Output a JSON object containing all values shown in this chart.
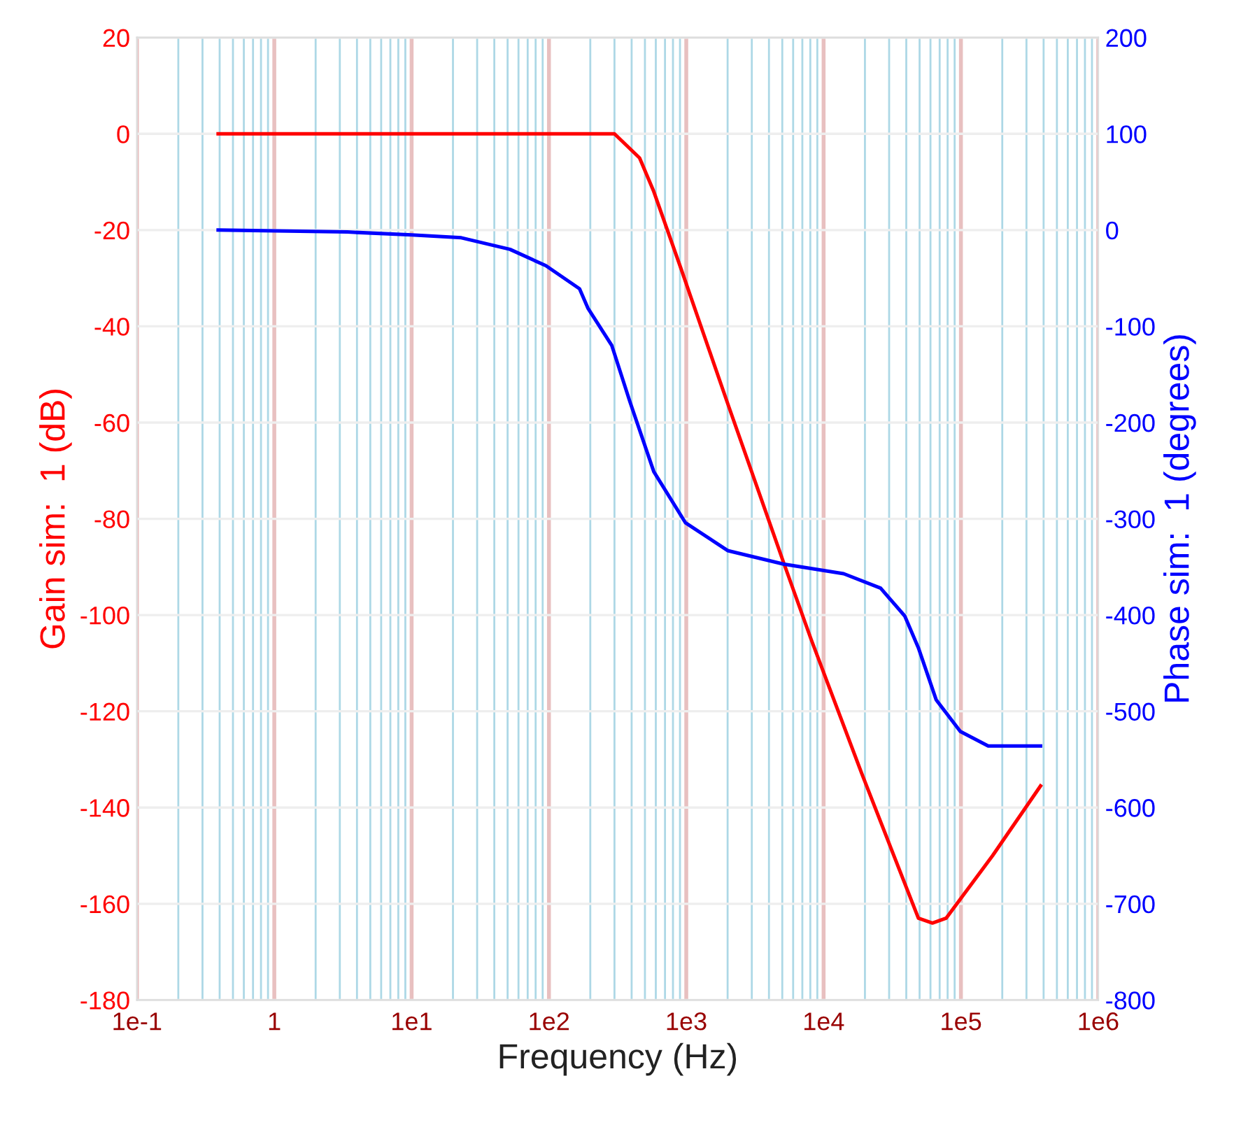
{
  "chart_data": {
    "type": "line",
    "xlabel": "Frequency (Hz)",
    "ylabel": "Gain sim:  1 (dB)",
    "y2label": "Phase sim:  1 (degrees)",
    "log": "x",
    "grid": true,
    "marker": "none",
    "line_style": "solid",
    "xlim": [
      0.1,
      1000000
    ],
    "xticks": [
      {
        "value": 0.1,
        "label": "1e-1"
      },
      {
        "value": 0.2,
        "label": null
      },
      {
        "value": 0.3,
        "label": null
      },
      {
        "value": 0.4,
        "label": null
      },
      {
        "value": 0.5,
        "label": null
      },
      {
        "value": 0.6,
        "label": null
      },
      {
        "value": 0.7,
        "label": null
      },
      {
        "value": 0.8,
        "label": null
      },
      {
        "value": 0.9,
        "label": null
      },
      1,
      {
        "value": 2,
        "label": null
      },
      {
        "value": 3,
        "label": null
      },
      {
        "value": 4,
        "label": null
      },
      {
        "value": 5,
        "label": null
      },
      {
        "value": 6,
        "label": null
      },
      {
        "value": 7,
        "label": null
      },
      {
        "value": 8,
        "label": null
      },
      {
        "value": 9,
        "label": null
      },
      {
        "value": 10,
        "label": "1e1"
      },
      {
        "value": 20,
        "label": null
      },
      {
        "value": 30,
        "label": null
      },
      {
        "value": 40,
        "label": null
      },
      {
        "value": 50,
        "label": null
      },
      {
        "value": 60,
        "label": null
      },
      {
        "value": 70,
        "label": null
      },
      {
        "value": 80,
        "label": null
      },
      {
        "value": 90,
        "label": null
      },
      {
        "value": 100,
        "label": "1e2"
      },
      {
        "value": 200,
        "label": null
      },
      {
        "value": 300,
        "label": null
      },
      {
        "value": 400,
        "label": null
      },
      {
        "value": 500,
        "label": null
      },
      {
        "value": 600,
        "label": null
      },
      {
        "value": 700,
        "label": null
      },
      {
        "value": 800,
        "label": null
      },
      {
        "value": 900,
        "label": null
      },
      {
        "value": 1000,
        "label": "1e3"
      },
      {
        "value": 2000,
        "label": null
      },
      {
        "value": 3000,
        "label": null
      },
      {
        "value": 4000,
        "label": null
      },
      {
        "value": 5000,
        "label": null
      },
      {
        "value": 6000,
        "label": null
      },
      {
        "value": 7000,
        "label": null
      },
      {
        "value": 8000,
        "label": null
      },
      {
        "value": 9000,
        "label": null
      },
      {
        "value": 10000,
        "label": "1e4"
      },
      {
        "value": 20000,
        "label": null
      },
      {
        "value": 30000,
        "label": null
      },
      {
        "value": 40000,
        "label": null
      },
      {
        "value": 50000,
        "label": null
      },
      {
        "value": 60000,
        "label": null
      },
      {
        "value": 70000,
        "label": null
      },
      {
        "value": 80000,
        "label": null
      },
      {
        "value": 90000,
        "label": null
      },
      {
        "value": 100000,
        "label": "1e5"
      },
      {
        "value": 200000,
        "label": null
      },
      {
        "value": 300000,
        "label": null
      },
      {
        "value": 400000,
        "label": null
      },
      {
        "value": 500000,
        "label": null
      },
      {
        "value": 600000,
        "label": null
      },
      {
        "value": 700000,
        "label": null
      },
      {
        "value": 800000,
        "label": null
      },
      {
        "value": 900000,
        "label": null
      },
      {
        "value": 1000000,
        "label": "1e6"
      }
    ],
    "ylim": [
      -180,
      20
    ],
    "yticks": [
      -180,
      -160,
      -140,
      -120,
      -100,
      -80,
      -60,
      -40,
      -20,
      0,
      20
    ],
    "y2lim": [
      -800,
      200
    ],
    "y2ticks": [
      -800,
      -700,
      -600,
      -500,
      -400,
      -300,
      -200,
      -100,
      0,
      100,
      200
    ],
    "series": [
      {
        "color": "#ff0000",
        "x": [
          0.39,
          300,
          457,
          580,
          915,
          2000,
          5100,
          8100,
          19000,
          49000,
          62000,
          78000,
          170000,
          380000
        ],
        "values": [
          0,
          0,
          -5,
          -12,
          -28,
          -56,
          -89,
          -105,
          -133,
          -163,
          -164,
          -163,
          -150,
          -135.5
        ]
      },
      {
        "color": "#0000ff",
        "axis": "y2",
        "x": [
          0.39,
          3.4,
          10,
          23,
          52,
          95,
          167,
          192,
          287,
          388,
          580,
          985,
          2000,
          5100,
          14000,
          26000,
          39000,
          49000,
          66000,
          99000,
          158000,
          380000
        ],
        "values": [
          0,
          -2,
          -5,
          -8,
          -20,
          -37,
          -61,
          -81,
          -120,
          -178,
          -251,
          -304,
          -333,
          -347,
          -357,
          -372,
          -401,
          -434,
          -488,
          -521,
          -536,
          -536
        ]
      }
    ]
  }
}
